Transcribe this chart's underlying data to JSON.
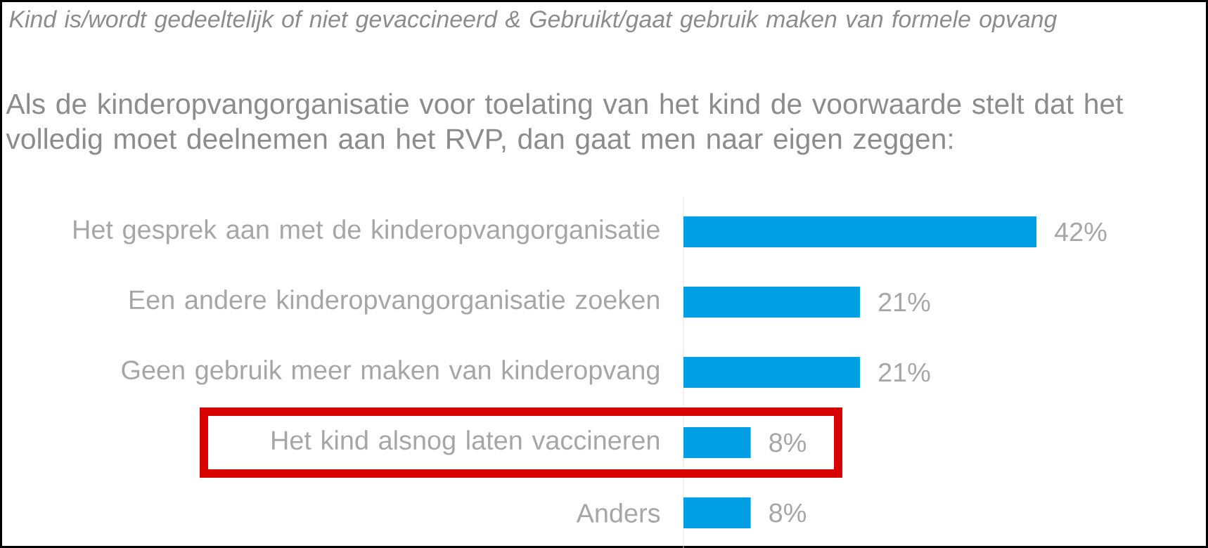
{
  "chart_data": {
    "type": "bar",
    "orientation": "horizontal",
    "title": "Kind is/wordt gedeeltelijk of niet gevaccineerd & Gebruikt/gaat gebruik maken van formele opvang",
    "subtitle": "Als de kinderopvangorganisatie voor toelating van het kind de voorwaarde stelt dat het volledig moet deelnemen aan het RVP, dan gaat men naar eigen zeggen:",
    "categories": [
      "Het gesprek aan met de kinderopvangorganisatie",
      "Een andere kinderopvangorganisatie zoeken",
      "Geen gebruik meer maken van kinderopvang",
      "Het kind alsnog laten vaccineren",
      "Anders"
    ],
    "values": [
      42,
      21,
      21,
      8,
      8
    ],
    "value_labels": [
      "42%",
      "21%",
      "21%",
      "8%",
      "8%"
    ],
    "color": "#009fe3"
  }
}
